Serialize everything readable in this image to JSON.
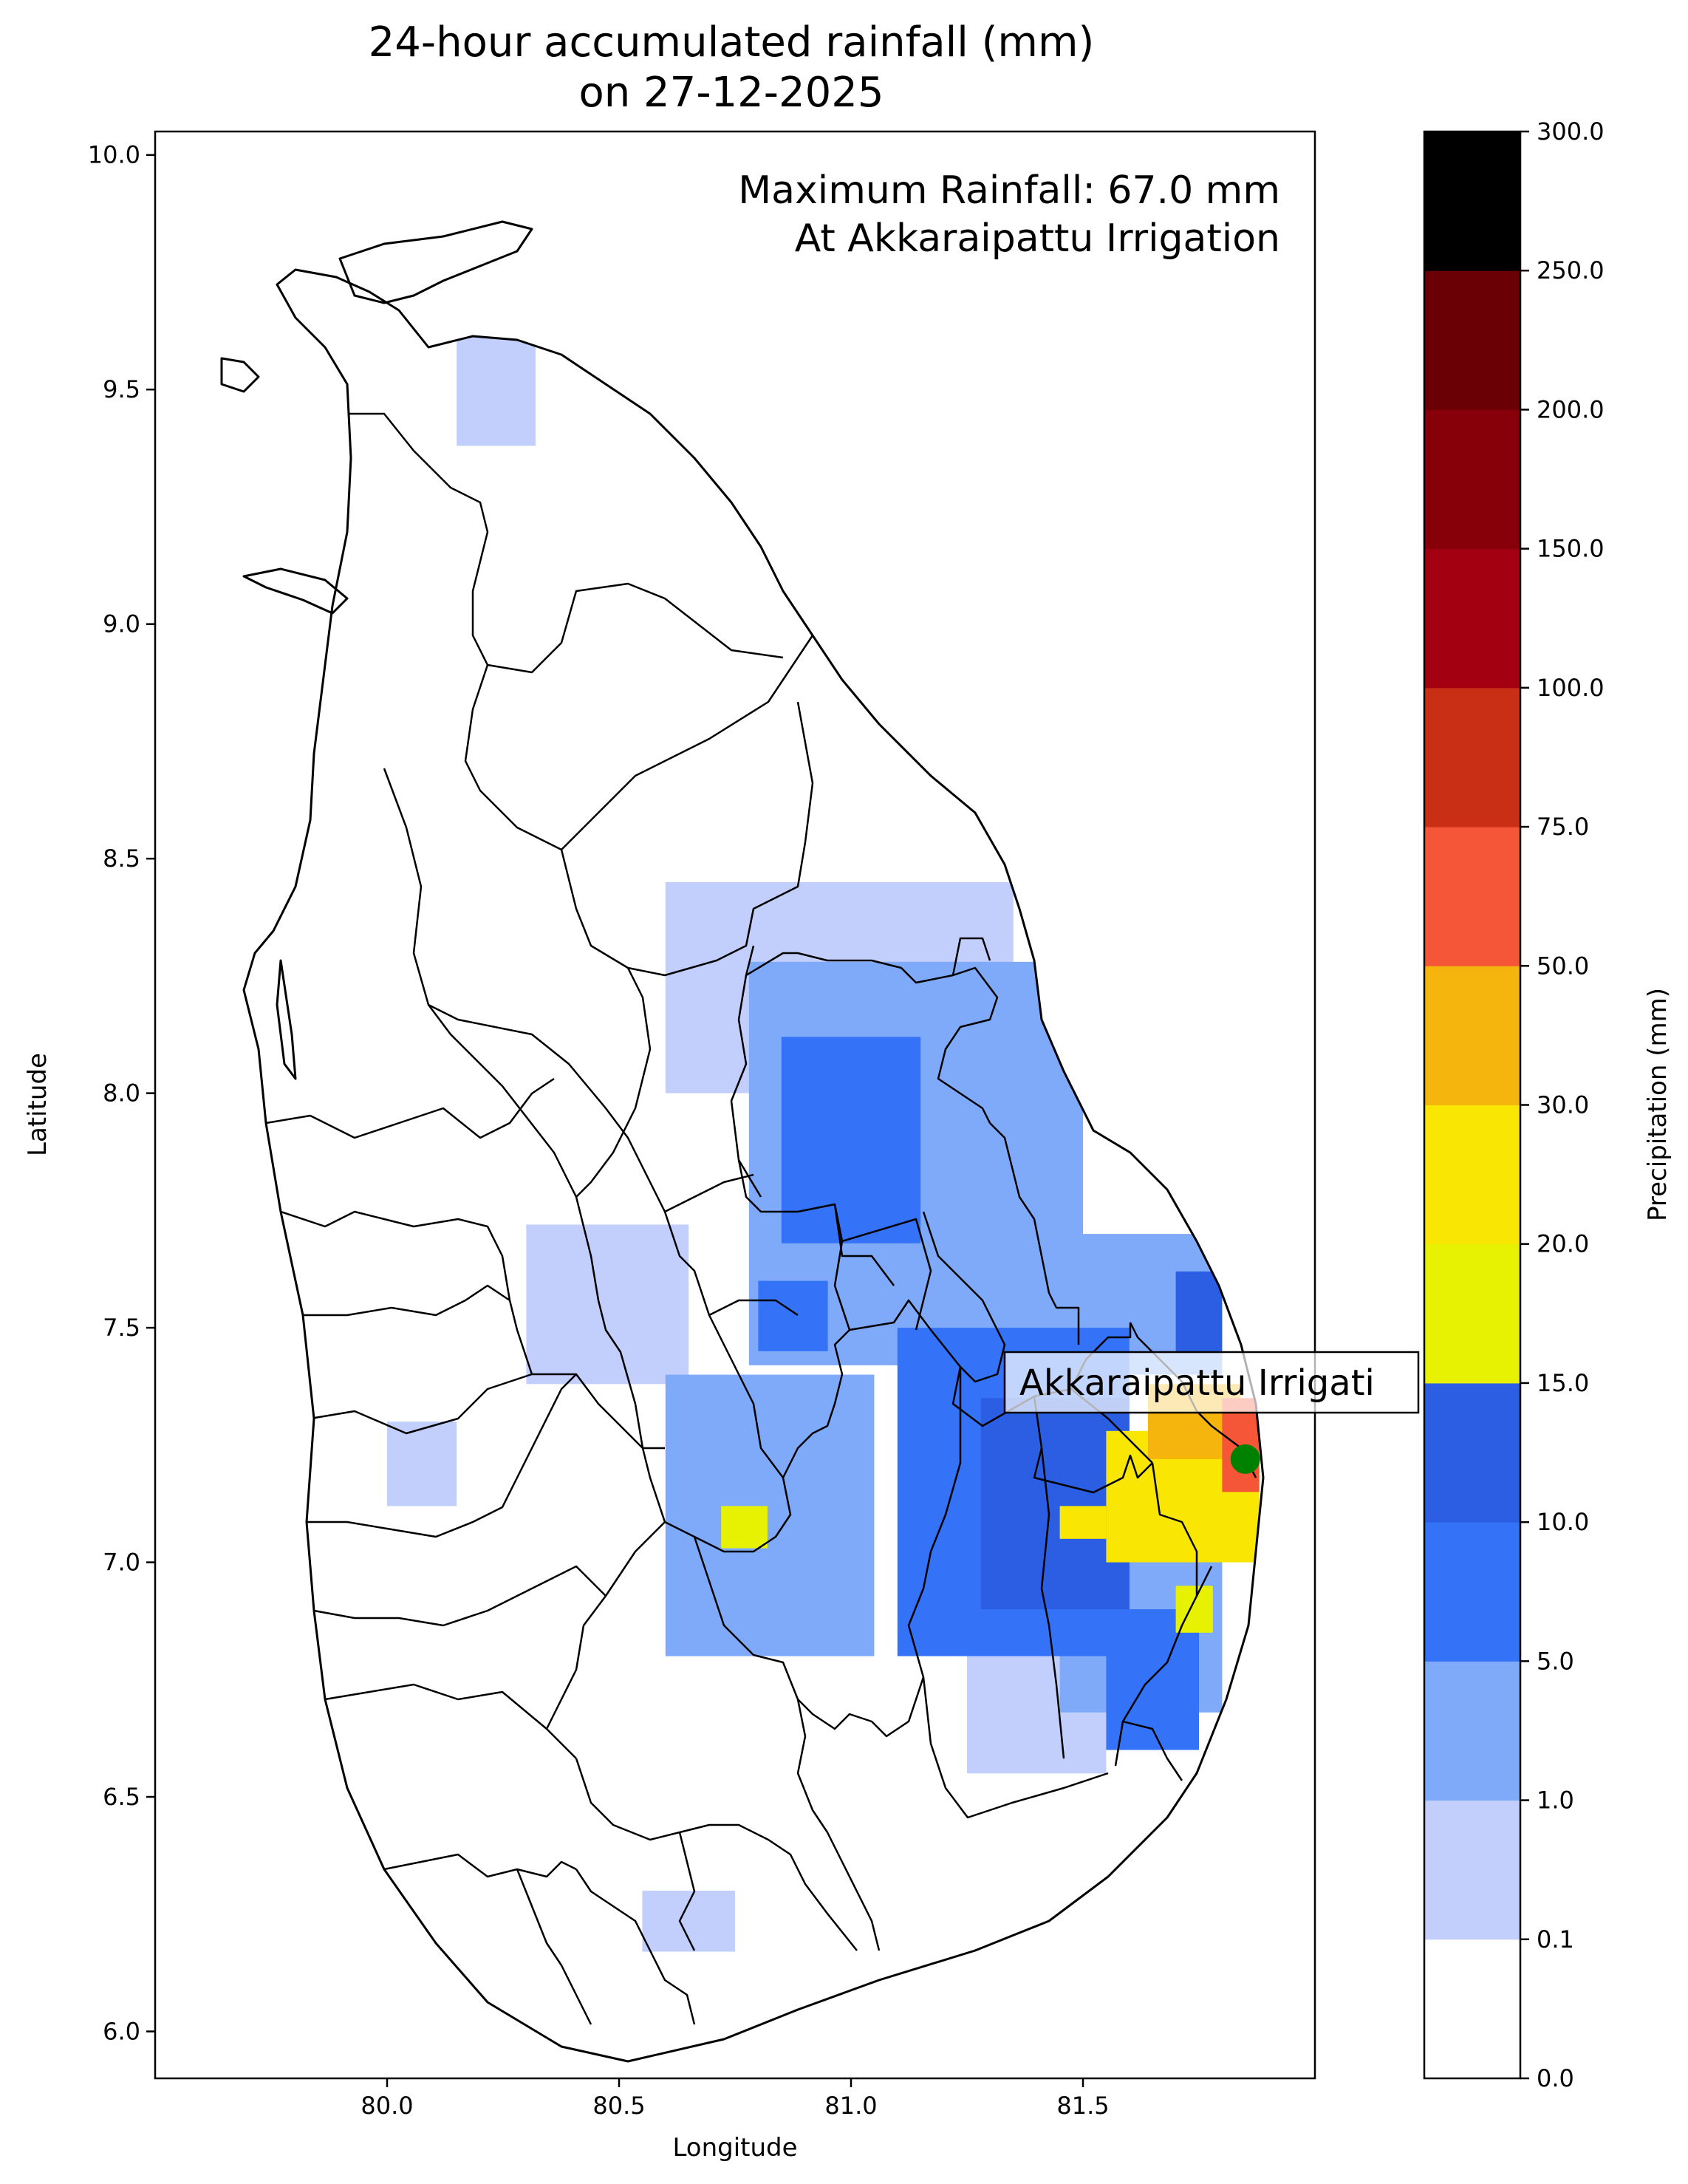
{
  "title": {
    "line1": "24-hour accumulated rainfall (mm)",
    "line2": "on 27-12-2025"
  },
  "max_info": {
    "line1": "Maximum Rainfall: 67.0 mm",
    "line2": "At Akkaraipattu Irrigation"
  },
  "station_label": "Akkaraipattu Irrigati",
  "station": {
    "name": "Akkaraipattu Irrigation",
    "lon": 81.85,
    "lat": 7.22,
    "color": "#008000"
  },
  "axes": {
    "xlabel": "Longitude",
    "ylabel": "Latitude",
    "xlim": [
      79.5,
      82.0
    ],
    "ylim": [
      5.9,
      10.05
    ],
    "xticks": [
      {
        "v": 80.0,
        "t": "80.0"
      },
      {
        "v": 80.5,
        "t": "80.5"
      },
      {
        "v": 81.0,
        "t": "81.0"
      },
      {
        "v": 81.5,
        "t": "81.5"
      }
    ],
    "yticks": [
      {
        "v": 6.0,
        "t": "6.0"
      },
      {
        "v": 6.5,
        "t": "6.5"
      },
      {
        "v": 7.0,
        "t": "7.0"
      },
      {
        "v": 7.5,
        "t": "7.5"
      },
      {
        "v": 8.0,
        "t": "8.0"
      },
      {
        "v": 8.5,
        "t": "8.5"
      },
      {
        "v": 9.0,
        "t": "9.0"
      },
      {
        "v": 9.5,
        "t": "9.5"
      },
      {
        "v": 10.0,
        "t": "10.0"
      }
    ]
  },
  "colorbar": {
    "label": "Precipitation (mm)",
    "levels": [
      "0.0",
      "0.1",
      "1.0",
      "5.0",
      "10.0",
      "15.0",
      "20.0",
      "30.0",
      "50.0",
      "75.0",
      "100.0",
      "150.0",
      "200.0",
      "250.0",
      "300.0"
    ],
    "colors": [
      "#ffffff",
      "#c2cffd",
      "#7eaaf9",
      "#3473f8",
      "#2b5ee2",
      "#e6f202",
      "#f9e602",
      "#f5b50c",
      "#f45637",
      "#c92f15",
      "#a30012",
      "#870009",
      "#6a0005",
      "#000000"
    ]
  },
  "rain_fields": [
    {
      "level": 1,
      "cells": [
        [
          80.6,
          8.0,
          81.35,
          8.45
        ],
        [
          80.3,
          7.38,
          80.65,
          7.72
        ],
        [
          80.0,
          7.12,
          80.15,
          7.3
        ],
        [
          80.55,
          6.17,
          80.75,
          6.3
        ],
        [
          80.15,
          9.38,
          80.32,
          9.62
        ],
        [
          81.25,
          6.55,
          81.55,
          6.88
        ]
      ]
    },
    {
      "level": 2,
      "cells": [
        [
          80.78,
          7.42,
          81.5,
          8.28
        ],
        [
          80.6,
          6.8,
          81.05,
          7.4
        ],
        [
          81.45,
          6.68,
          81.8,
          7.1
        ],
        [
          81.4,
          7.4,
          81.8,
          7.7
        ]
      ]
    },
    {
      "level": 3,
      "cells": [
        [
          80.85,
          7.68,
          81.15,
          8.12
        ],
        [
          80.8,
          7.45,
          80.95,
          7.6
        ],
        [
          81.1,
          6.8,
          81.6,
          7.5
        ],
        [
          81.55,
          6.6,
          81.75,
          6.9
        ]
      ]
    },
    {
      "level": 4,
      "cells": [
        [
          81.28,
          6.9,
          81.6,
          7.35
        ],
        [
          81.7,
          7.45,
          81.8,
          7.62
        ]
      ]
    },
    {
      "level": 5,
      "cells": [
        [
          80.72,
          7.03,
          80.82,
          7.12
        ],
        [
          81.7,
          6.85,
          81.78,
          6.95
        ]
      ]
    },
    {
      "level": 6,
      "cells": [
        [
          81.55,
          7.0,
          81.88,
          7.28
        ],
        [
          81.45,
          7.05,
          81.55,
          7.12
        ]
      ]
    },
    {
      "level": 7,
      "cells": [
        [
          81.64,
          7.22,
          81.84,
          7.38
        ]
      ]
    },
    {
      "level": 8,
      "cells": [
        [
          81.8,
          7.15,
          81.88,
          7.35
        ]
      ]
    }
  ]
}
